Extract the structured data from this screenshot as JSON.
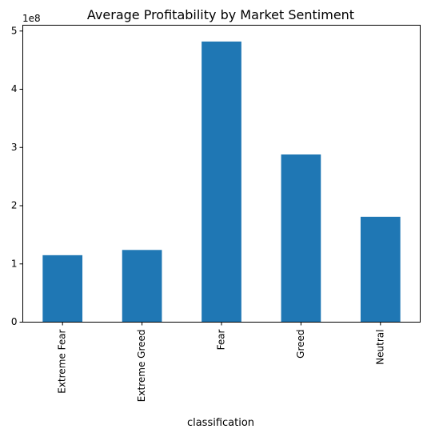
{
  "chart_data": {
    "type": "bar",
    "title": "Average Profitability by Market Sentiment",
    "xlabel": "classification",
    "ylabel": "",
    "y_scale_label": "1e8",
    "categories": [
      "Extreme Fear",
      "Extreme Greed",
      "Fear",
      "Greed",
      "Neutral"
    ],
    "values": [
      115000000,
      124000000,
      482000000,
      288000000,
      181000000
    ],
    "ylim": [
      0,
      510000000
    ],
    "yticks": [
      0,
      1,
      2,
      3,
      4,
      5
    ],
    "grid": false,
    "legend": "none",
    "bar_color": "#1f77b4"
  }
}
